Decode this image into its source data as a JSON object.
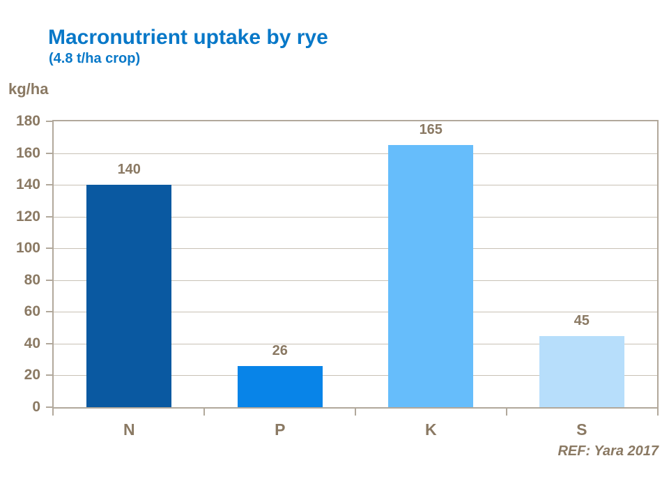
{
  "header": {
    "title": "Macronutrient uptake by rye",
    "subtitle": "(4.8 t/ha crop)"
  },
  "footer": {
    "ref": "REF: Yara 2017"
  },
  "chart_data": {
    "type": "bar",
    "title": "Macronutrient uptake by rye",
    "subtitle": "(4.8 t/ha crop)",
    "ylabel": "kg/ha",
    "xlabel": "",
    "categories": [
      "N",
      "P",
      "K",
      "S"
    ],
    "values": [
      140,
      26,
      165,
      45
    ],
    "value_labels": [
      "140",
      "26",
      "165",
      "45"
    ],
    "bar_colors": [
      "#0A59A1",
      "#0884E8",
      "#66BDFB",
      "#B7DEFB"
    ],
    "ylim": [
      0,
      180
    ],
    "ytick_step": 20,
    "grid": true,
    "legend": "none"
  },
  "colors": {
    "title_blue": "#0878C8",
    "text_brown": "#8A7963",
    "axis_border": "#B1A89B",
    "gridline": "#C8C1B5",
    "background": "#FFFFFF"
  }
}
